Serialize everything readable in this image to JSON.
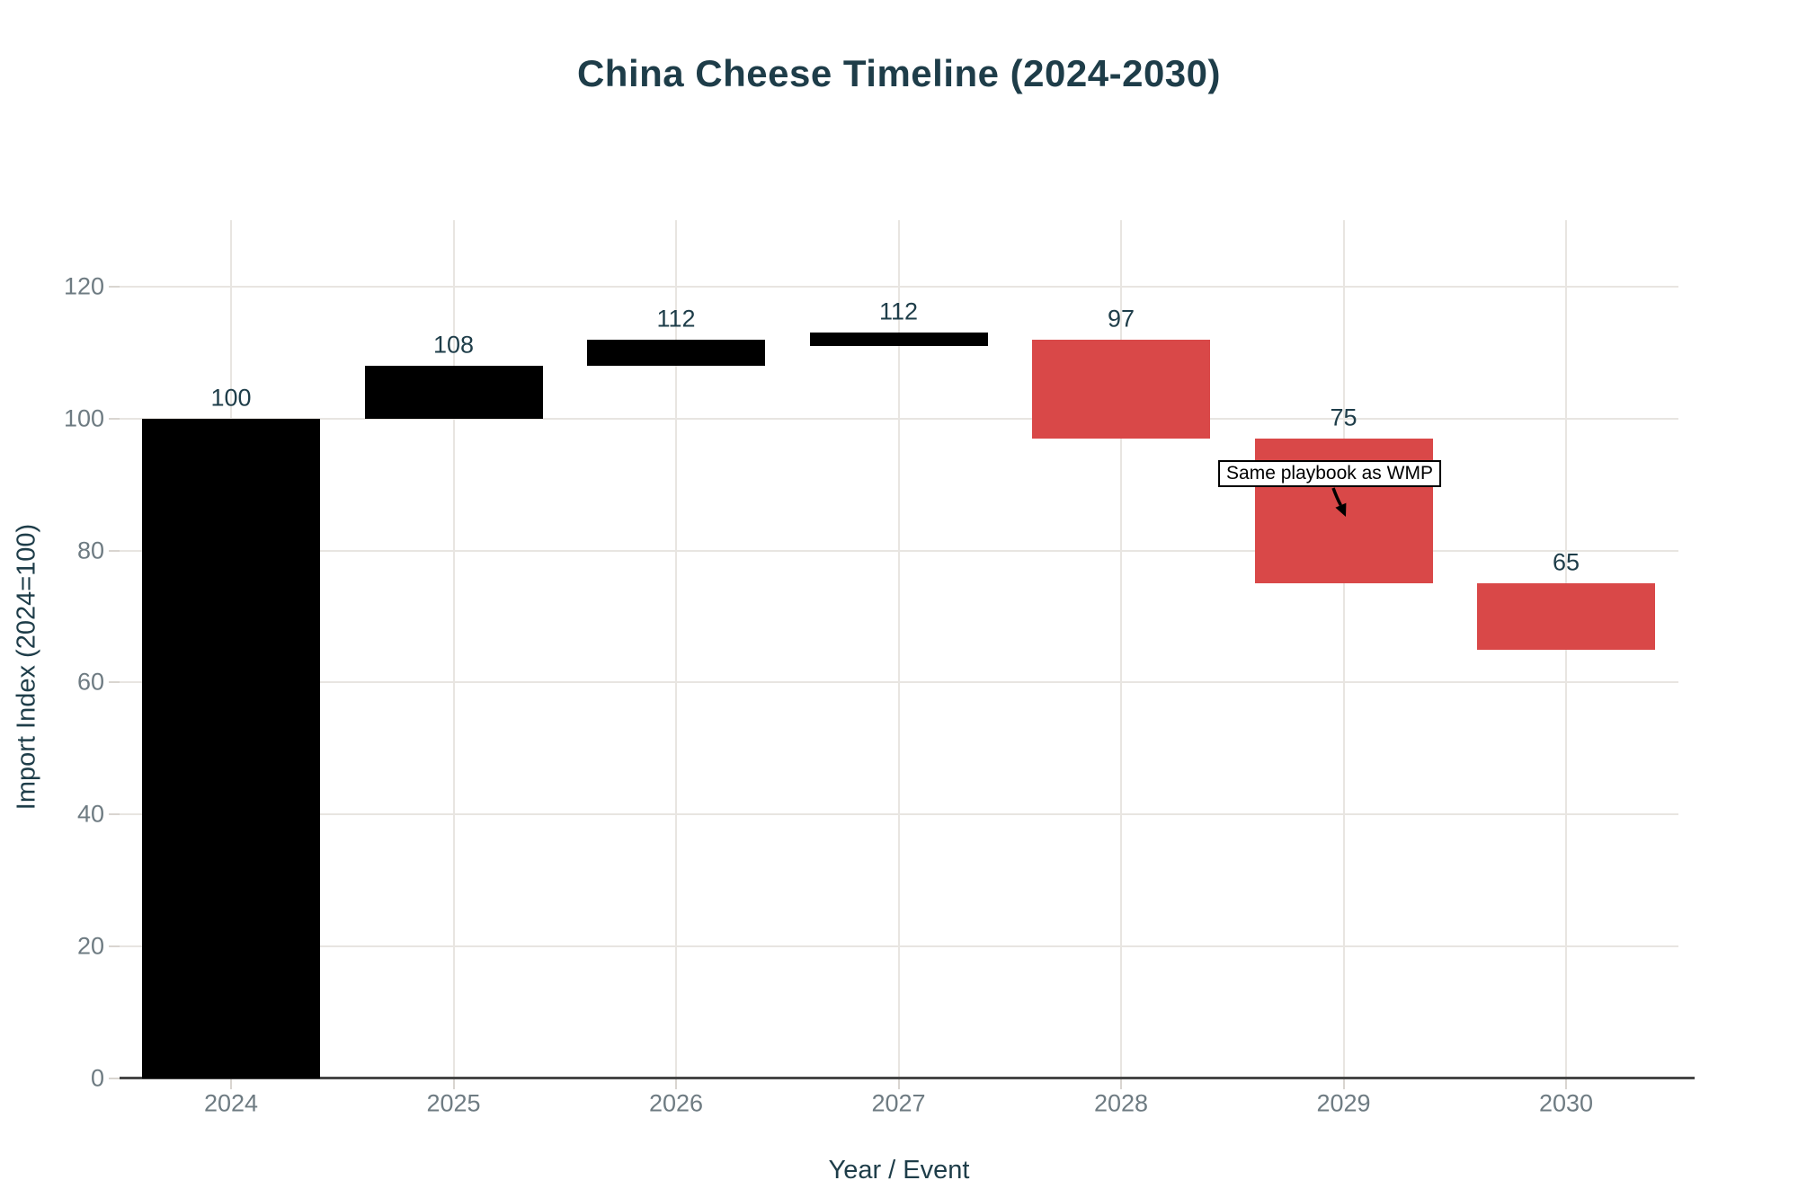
{
  "chart_data": {
    "type": "bar",
    "subtype": "waterfall",
    "title": "China Cheese Timeline (2024-2030)",
    "xlabel": "Year / Event",
    "ylabel": "Import Index (2024=100)",
    "categories": [
      "2024",
      "2025",
      "2026",
      "2027",
      "2028",
      "2029",
      "2030"
    ],
    "series": [
      {
        "name": "Import Index",
        "points": [
          {
            "category": "2024",
            "start": 0,
            "end": 100,
            "value_label": "100",
            "direction": "total"
          },
          {
            "category": "2025",
            "start": 100,
            "end": 108,
            "value_label": "108",
            "direction": "increase"
          },
          {
            "category": "2026",
            "start": 108,
            "end": 112,
            "value_label": "112",
            "direction": "increase"
          },
          {
            "category": "2027",
            "start": 112,
            "end": 112,
            "value_label": "112",
            "direction": "flat"
          },
          {
            "category": "2028",
            "start": 112,
            "end": 97,
            "value_label": "97",
            "direction": "decrease"
          },
          {
            "category": "2029",
            "start": 97,
            "end": 75,
            "value_label": "75",
            "direction": "decrease"
          },
          {
            "category": "2030",
            "start": 75,
            "end": 65,
            "value_label": "65",
            "direction": "decrease"
          }
        ]
      }
    ],
    "yticks": [
      0,
      20,
      40,
      60,
      80,
      100,
      120
    ],
    "ylim": [
      0,
      130
    ],
    "grid": true,
    "legend": "none",
    "annotation": {
      "text": "Same playbook as WMP",
      "target_category": "2029"
    },
    "colors": {
      "total": "#000000",
      "increase": "#000000",
      "flat": "#000000",
      "decrease": "#d94848",
      "title_text": "#1e3d49",
      "tick_text": "#6e7b82",
      "gridline": "#e8e5e1",
      "tick_mark": "#d9d5d0",
      "axis_line": "#464646",
      "annotation_border": "#000000",
      "annotation_bg": "#ffffff"
    }
  }
}
